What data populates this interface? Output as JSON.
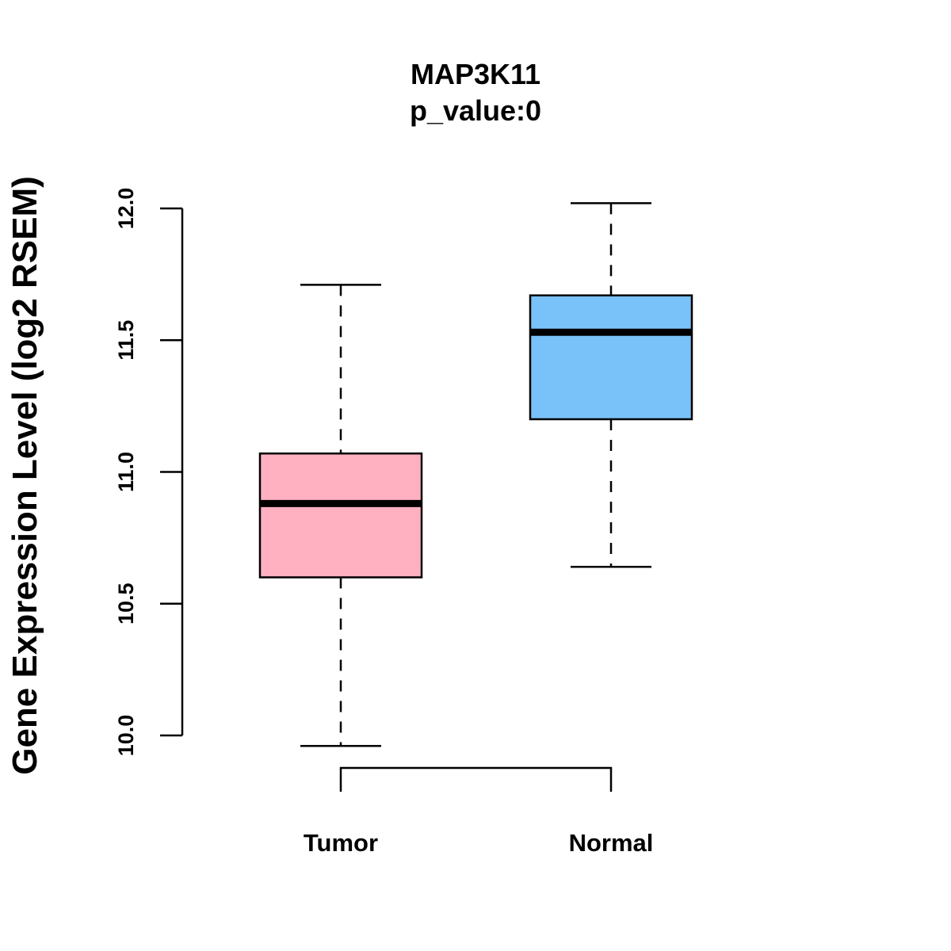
{
  "chart_data": {
    "type": "boxplot",
    "title": "MAP3K11",
    "subtitle": "p_value:0",
    "xlabel": "",
    "ylabel": "Gene Expression Level (log2 RSEM)",
    "ylim": [
      9.96,
      12.02
    ],
    "yticks": [
      10.0,
      10.5,
      11.0,
      11.5,
      12.0
    ],
    "ytick_labels": [
      "10.0",
      "10.5",
      "11.0",
      "11.5",
      "12.0"
    ],
    "categories": [
      "Tumor",
      "Normal"
    ],
    "boxes": [
      {
        "name": "Tumor",
        "whisker_low": 9.96,
        "q1": 10.6,
        "median": 10.88,
        "q3": 11.07,
        "whisker_high": 11.71,
        "color": "#FFB1C2"
      },
      {
        "name": "Normal",
        "whisker_low": 10.64,
        "q1": 11.2,
        "median": 11.53,
        "q3": 11.67,
        "whisker_high": 12.02,
        "color": "#79C1F9"
      }
    ],
    "comparison_bracket": [
      "Tumor",
      "Normal"
    ],
    "grid": false,
    "legend": "none"
  }
}
